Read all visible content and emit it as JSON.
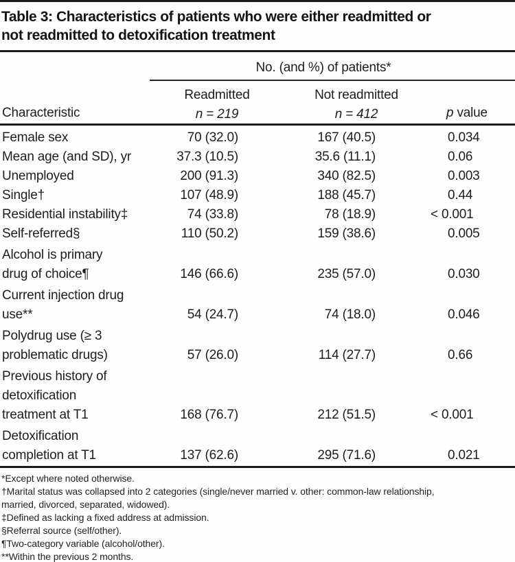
{
  "title": "Table 3: Characteristics of patients who were either readmitted or\nnot readmitted to detoxification treatment",
  "header": {
    "span_label": "No. (and %) of patients*",
    "characteristic": "Characteristic",
    "readmitted_label": "Readmitted",
    "readmitted_n": "n = 219",
    "not_readmitted_label": "Not readmitted",
    "not_readmitted_n": "n = 412",
    "p_italic": "p",
    "p_rest": " value"
  },
  "rows": [
    {
      "label": "Female sex",
      "readmitted": "70 (32.0)",
      "not_readmitted": "167 (40.5)",
      "p": "0.034"
    },
    {
      "label": "Mean age (and SD), yr",
      "readmitted": "37.3 (10.5)",
      "not_readmitted": "35.6 (11.1)",
      "p": "0.06"
    },
    {
      "label": "Unemployed",
      "readmitted": "200 (91.3)",
      "not_readmitted": "340 (82.5)",
      "p": "0.003"
    },
    {
      "label": "Single†",
      "readmitted": "107 (48.9)",
      "not_readmitted": "188 (45.7)",
      "p": "0.44"
    },
    {
      "label": "Residential instability‡",
      "readmitted": "74 (33.8)",
      "not_readmitted": "78 (18.9)",
      "p": "< 0.001"
    },
    {
      "label": "Self-referred§",
      "readmitted": "110 (50.2)",
      "not_readmitted": "159 (38.6)",
      "p": "0.005"
    },
    {
      "label": "Alcohol is primary\ndrug of choice¶",
      "readmitted": "146 (66.6)",
      "not_readmitted": "235 (57.0)",
      "p": "0.030"
    },
    {
      "label": "Current injection drug\nuse**",
      "readmitted": "54 (24.7)",
      "not_readmitted": "74 (18.0)",
      "p": "0.046"
    },
    {
      "label": "Polydrug use (≥ 3\nproblematic drugs)",
      "readmitted": "57 (26.0)",
      "not_readmitted": "114 (27.7)",
      "p": "0.66"
    },
    {
      "label": "Previous history of\ndetoxification\ntreatment at T1",
      "readmitted": "168 (76.7)",
      "not_readmitted": "212 (51.5)",
      "p": "< 0.001"
    },
    {
      "label": "Detoxification\ncompletion at T1",
      "readmitted": "137 (62.6)",
      "not_readmitted": "295 (71.6)",
      "p": "0.021"
    }
  ],
  "footnotes": [
    "*Except where noted otherwise.",
    "†Marital status was collapsed into 2 categories (single/never married v. other: common-law relationship,\nmarried, divorced, separated, widowed).",
    "‡Defined as lacking a fixed address at admission.",
    "§Referral source (self/other).",
    "¶Two-category variable (alcohol/other).",
    "**Within the previous 2 months."
  ],
  "colors": {
    "background": "#fefefe",
    "text": "#1d1d1d",
    "rule": "#1a1a1a"
  }
}
